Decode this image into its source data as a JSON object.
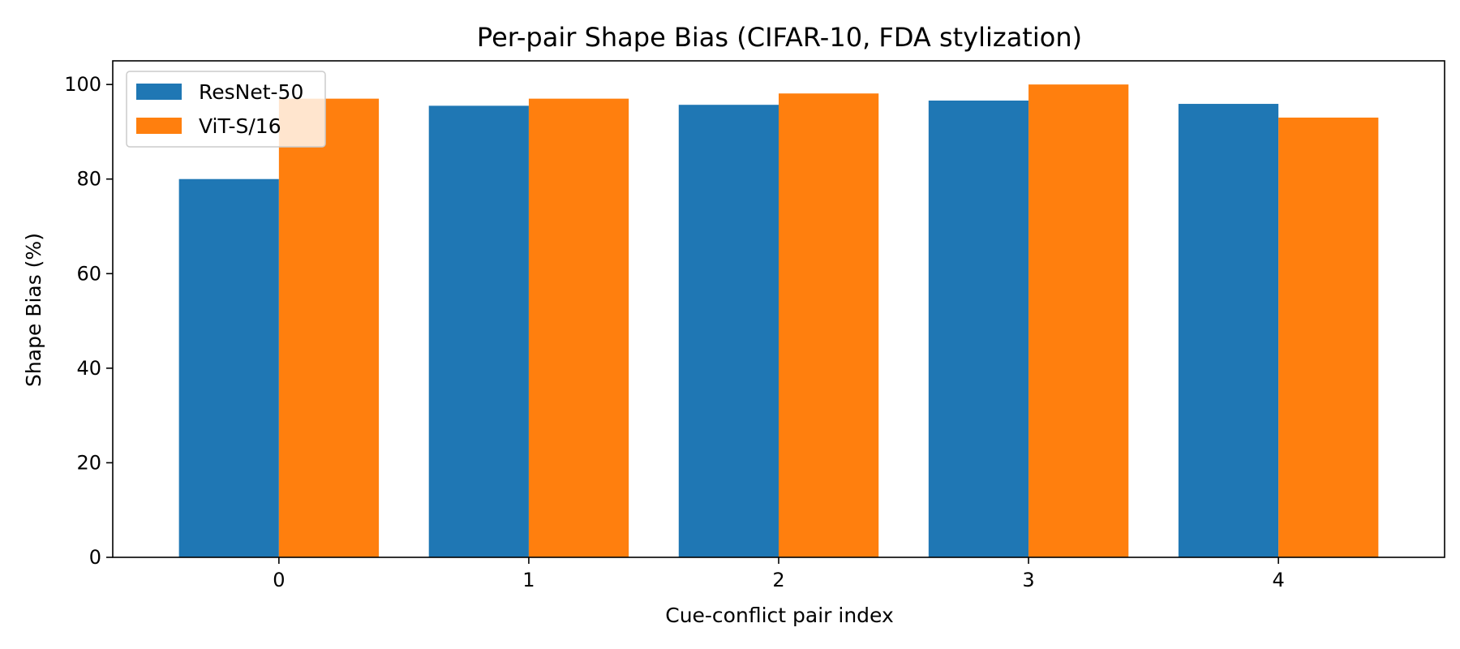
{
  "chart_data": {
    "type": "bar",
    "title": "Per-pair Shape Bias (CIFAR-10, FDA stylization)",
    "xlabel": "Cue-conflict pair index",
    "ylabel": "Shape Bias (%)",
    "categories": [
      "0",
      "1",
      "2",
      "3",
      "4"
    ],
    "series": [
      {
        "name": "ResNet-50",
        "color": "#1f77b4",
        "values": [
          80.0,
          95.5,
          95.7,
          96.6,
          95.9
        ]
      },
      {
        "name": "ViT-S/16",
        "color": "#ff7f0e",
        "values": [
          97.0,
          97.0,
          98.1,
          100.0,
          93.0
        ]
      }
    ],
    "ylim": [
      0,
      105
    ],
    "yticks": [
      0,
      20,
      40,
      60,
      80,
      100
    ],
    "grid": false,
    "legend_position": "top-left"
  }
}
